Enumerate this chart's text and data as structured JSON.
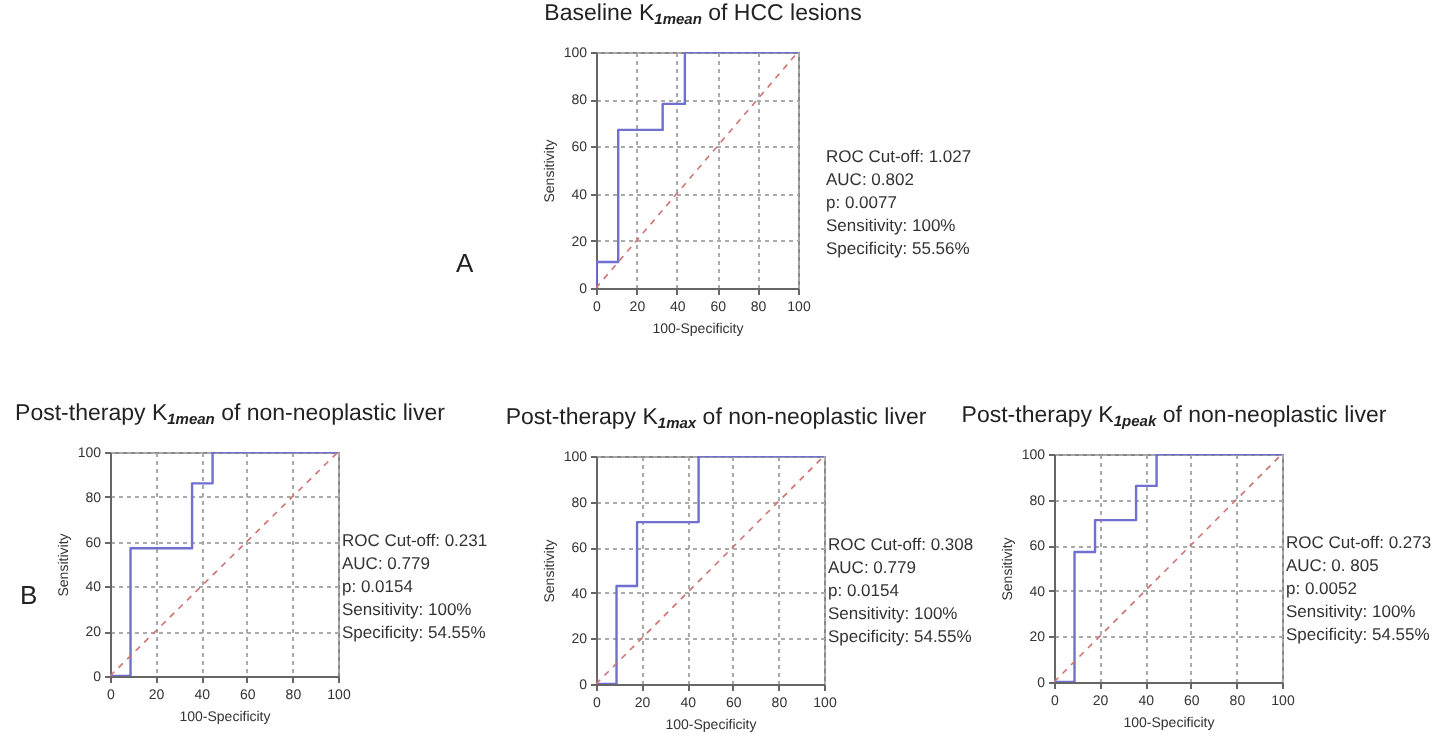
{
  "chart_data": [
    {
      "type": "line",
      "title": "Baseline K$_{1mean}$ of HCC lesions",
      "xlabel": "100-Specificity",
      "ylabel": "Sensitivity",
      "xlim": [
        0,
        100
      ],
      "ylim": [
        0,
        100
      ],
      "xticks": [
        0,
        20,
        40,
        60,
        80,
        100
      ],
      "yticks": [
        0,
        20,
        40,
        60,
        80,
        100
      ],
      "grid": true,
      "annotations": [
        "ROC Cut-off: 1.027\nAUC: 0.802\np: 0.0077\nSensitivity: 100%\nSpecificity: 55.56%",
        "A"
      ],
      "series": [
        {
          "x": [
            0,
            0,
            11,
            11,
            33,
            33,
            44,
            44,
            100
          ],
          "values": [
            0,
            11,
            11,
            67,
            67,
            78,
            78,
            100,
            100
          ],
          "color": "#7070d0",
          "line_style": "solid"
        },
        {
          "x": [
            0,
            100
          ],
          "values": [
            0,
            100
          ],
          "color": "#d07070",
          "line_style": "dashed"
        }
      ]
    },
    {
      "type": "line",
      "title": "Post-therapy K$_{1mean}$ of non-neoplastic liver",
      "xlabel": "100-Specificity",
      "ylabel": "Sensitivity",
      "xlim": [
        0,
        100
      ],
      "ylim": [
        0,
        100
      ],
      "xticks": [
        0,
        20,
        40,
        60,
        80,
        100
      ],
      "yticks": [
        0,
        20,
        40,
        60,
        80,
        100
      ],
      "grid": true,
      "annotations": [
        "ROC Cut-off: 0.231\nAUC: 0.779\np: 0.0154\nSensitivity: 100%\nSpecificity: 54.55%",
        "B"
      ],
      "series": [
        {
          "x": [
            0,
            9,
            9,
            36,
            36,
            45,
            45,
            100
          ],
          "values": [
            0,
            0,
            57,
            57,
            86,
            86,
            100,
            100
          ],
          "color": "#7070d0",
          "line_style": "solid"
        },
        {
          "x": [
            0,
            100
          ],
          "values": [
            0,
            100
          ],
          "color": "#d07070",
          "line_style": "dashed"
        }
      ]
    },
    {
      "type": "line",
      "title": "Post-therapy K$_{1max}$ of non-neoplastic liver",
      "xlabel": "100-Specificity",
      "ylabel": "Sensitivity",
      "xlim": [
        0,
        100
      ],
      "ylim": [
        0,
        100
      ],
      "xticks": [
        0,
        20,
        40,
        60,
        80,
        100
      ],
      "yticks": [
        0,
        20,
        40,
        60,
        80,
        100
      ],
      "grid": true,
      "annotations": [
        "ROC Cut-off: 0.308\nAUC: 0.779\np: 0.0154\nSensitivity: 100%\nSpecificity: 54.55%"
      ],
      "series": [
        {
          "x": [
            0,
            9,
            9,
            18,
            18,
            45,
            45,
            100
          ],
          "values": [
            0,
            0,
            43,
            43,
            71,
            71,
            100,
            100
          ],
          "color": "#7070d0",
          "line_style": "solid"
        },
        {
          "x": [
            0,
            100
          ],
          "values": [
            0,
            100
          ],
          "color": "#d07070",
          "line_style": "dashed"
        }
      ]
    },
    {
      "type": "line",
      "title": "Post-therapy K$_{1peak}$ of non-neoplastic liver",
      "xlabel": "100-Specificity",
      "ylabel": "Sensitivity",
      "xlim": [
        0,
        100
      ],
      "ylim": [
        0,
        100
      ],
      "xticks": [
        0,
        20,
        40,
        60,
        80,
        100
      ],
      "yticks": [
        0,
        20,
        40,
        60,
        80,
        100
      ],
      "grid": true,
      "annotations": [
        "ROC Cut-off: 0.273\nAUC: 0. 805\np: 0.0052\nSensitivity: 100%\nSpecificity: 54.55%"
      ],
      "series": [
        {
          "x": [
            0,
            9,
            9,
            18,
            18,
            36,
            36,
            45,
            45,
            100
          ],
          "values": [
            0,
            0,
            57,
            57,
            71,
            71,
            86,
            86,
            100,
            100
          ],
          "color": "#7070d0",
          "line_style": "solid"
        },
        {
          "x": [
            0,
            100
          ],
          "values": [
            0,
            100
          ],
          "color": "#d07070",
          "line_style": "dashed"
        }
      ]
    }
  ]
}
